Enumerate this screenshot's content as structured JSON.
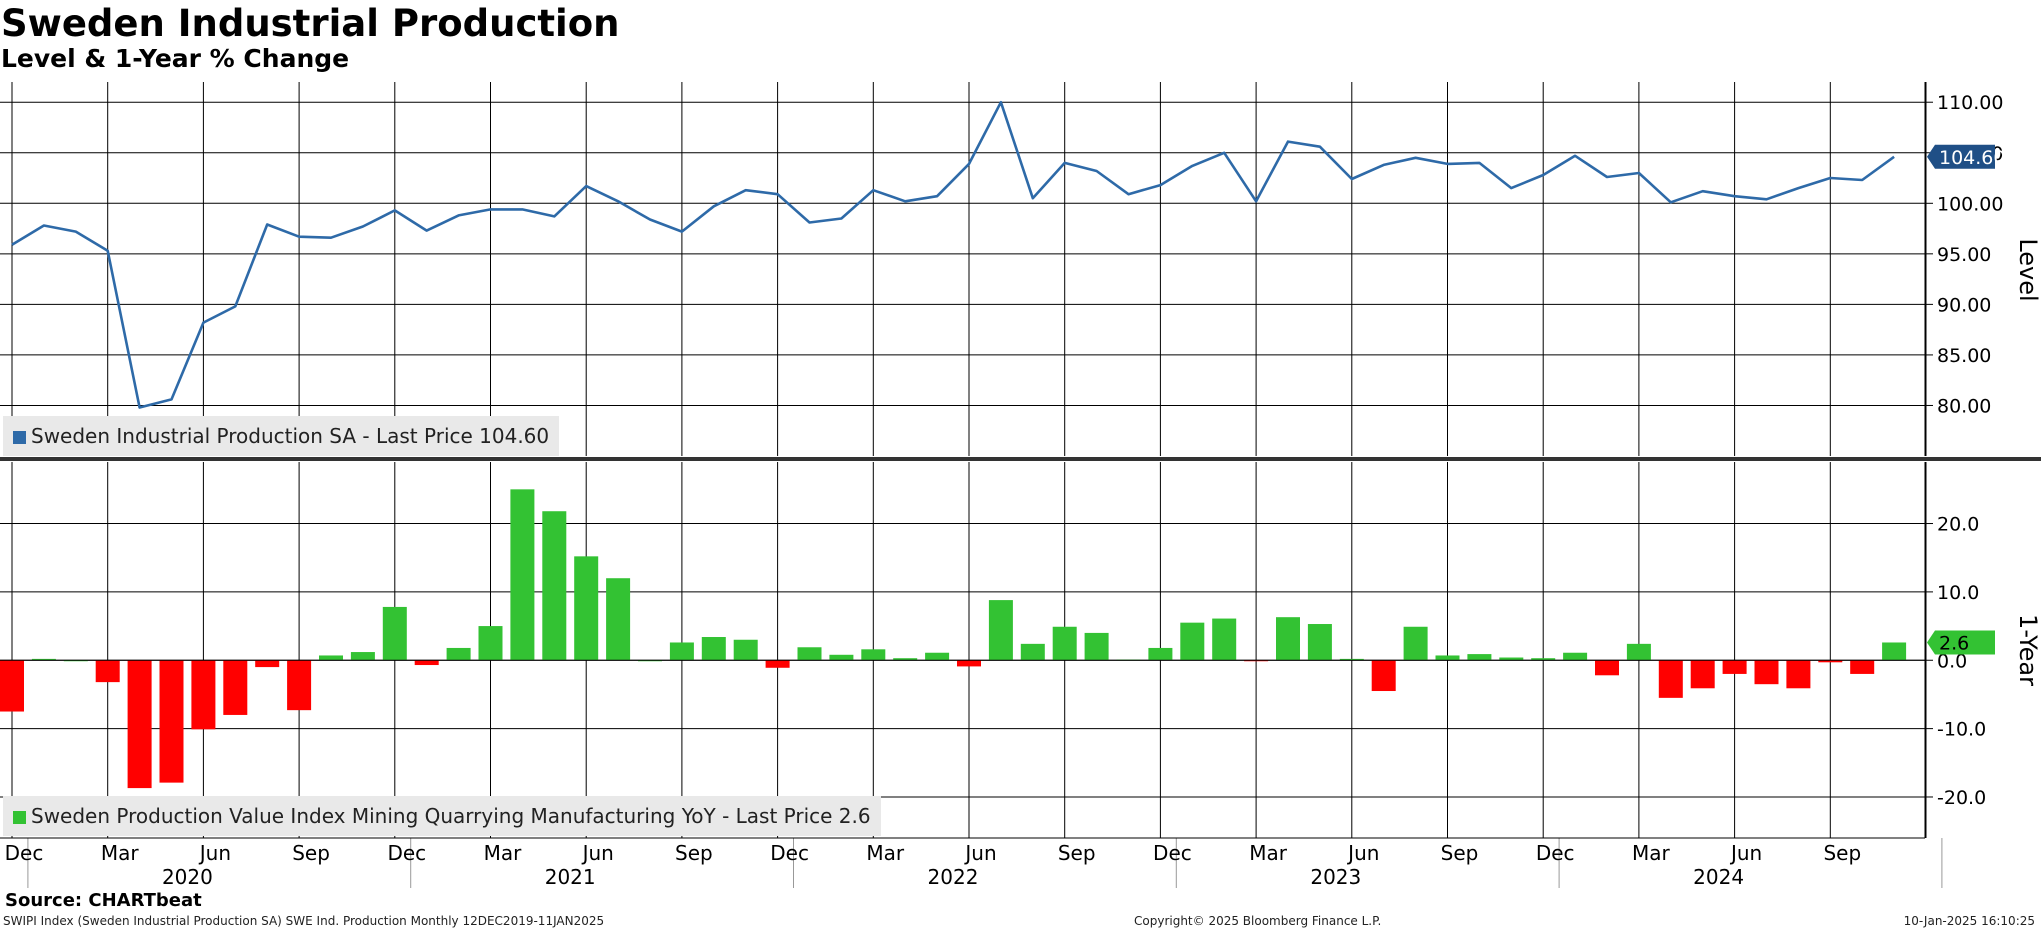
{
  "header": {
    "title": "Sweden Industrial Production",
    "subtitle": "Level & 1-Year % Change"
  },
  "footer": {
    "source": "Source: CHARTbeat",
    "left": "SWIPI Index (Sweden Industrial Production SA) SWE Ind. Production  Monthly 12DEC2019-11JAN2025",
    "mid": "Copyright© 2025 Bloomberg Finance L.P.",
    "right": "10-Jan-2025 16:10:25"
  },
  "colors": {
    "line": "#2e6aa8",
    "bar_positive": "#33c233",
    "bar_negative": "#ff0000",
    "grid": "#000000"
  },
  "chart_data": [
    {
      "type": "line",
      "panel": "top",
      "ylabel": "Level",
      "ylim": [
        75,
        112
      ],
      "yticks": [
        "80.00",
        "85.00",
        "90.00",
        "95.00",
        "100.00",
        "105.00",
        "110.00"
      ],
      "last_value_label": "104.60",
      "legend": "Sweden Industrial Production SA - Last Price 104.60",
      "legend_position": "bottom-left",
      "x": [
        "2019-12",
        "2020-01",
        "2020-02",
        "2020-03",
        "2020-04",
        "2020-05",
        "2020-06",
        "2020-07",
        "2020-08",
        "2020-09",
        "2020-10",
        "2020-11",
        "2020-12",
        "2021-01",
        "2021-02",
        "2021-03",
        "2021-04",
        "2021-05",
        "2021-06",
        "2021-07",
        "2021-08",
        "2021-09",
        "2021-10",
        "2021-11",
        "2021-12",
        "2022-01",
        "2022-02",
        "2022-03",
        "2022-04",
        "2022-05",
        "2022-06",
        "2022-07",
        "2022-08",
        "2022-09",
        "2022-10",
        "2022-11",
        "2022-12",
        "2023-01",
        "2023-02",
        "2023-03",
        "2023-04",
        "2023-05",
        "2023-06",
        "2023-07",
        "2023-08",
        "2023-09",
        "2023-10",
        "2023-11",
        "2023-12",
        "2024-01",
        "2024-02",
        "2024-03",
        "2024-04",
        "2024-05",
        "2024-06",
        "2024-07",
        "2024-08",
        "2024-09",
        "2024-10",
        "2024-11"
      ],
      "series": [
        {
          "values": [
            95.9,
            97.8,
            97.2,
            95.3,
            79.8,
            80.6,
            88.2,
            89.8,
            97.9,
            96.7,
            96.6,
            97.7,
            99.3,
            97.3,
            98.8,
            99.4,
            99.4,
            98.7,
            101.7,
            100.2,
            98.4,
            97.2,
            99.7,
            101.3,
            100.9,
            98.1,
            98.5,
            101.3,
            100.2,
            100.7,
            103.9,
            110.0,
            100.5,
            104.0,
            103.2,
            100.9,
            101.8,
            103.7,
            105.0,
            100.2,
            106.1,
            105.6,
            102.4,
            103.8,
            104.5,
            103.9,
            104.0,
            101.5,
            102.8,
            104.7,
            102.6,
            103.0,
            100.1,
            101.2,
            100.7,
            100.4,
            101.5,
            102.5,
            102.3,
            104.6
          ]
        }
      ]
    },
    {
      "type": "bar",
      "panel": "bottom",
      "ylabel": "1-Year",
      "ylim": [
        -26,
        29
      ],
      "yticks": [
        "-20.0",
        "-10.0",
        "0.0",
        "10.0",
        "20.0"
      ],
      "last_value_label": "2.6",
      "legend": "Sweden Production Value Index Mining Quarrying Manufacturing YoY - Last Price 2.6",
      "legend_position": "bottom-left",
      "x_month_labels": [
        "Dec",
        "Mar",
        "Jun",
        "Sep",
        "Dec",
        "Mar",
        "Jun",
        "Sep",
        "Dec",
        "Mar",
        "Jun",
        "Sep",
        "Dec",
        "Mar",
        "Jun",
        "Sep",
        "Dec",
        "Mar",
        "Jun",
        "Sep"
      ],
      "x_year_labels": [
        "2020",
        "2021",
        "2022",
        "2023",
        "2024"
      ],
      "series": [
        {
          "values": [
            -7.5,
            0.2,
            0.0,
            -3.2,
            -18.7,
            -17.9,
            -10.1,
            -8.0,
            -1.0,
            -7.3,
            0.7,
            1.2,
            7.8,
            -0.7,
            1.8,
            5.0,
            25.0,
            21.8,
            15.2,
            12.0,
            0.0,
            2.6,
            3.4,
            3.0,
            -1.1,
            1.9,
            0.8,
            1.6,
            0.3,
            1.1,
            -0.9,
            8.8,
            2.4,
            4.9,
            4.0,
            0.1,
            1.8,
            5.5,
            6.1,
            -0.1,
            6.3,
            5.3,
            0.2,
            -4.5,
            4.9,
            0.7,
            0.9,
            0.4,
            0.3,
            1.1,
            -2.2,
            2.4,
            -5.5,
            -4.1,
            -2.0,
            -3.5,
            -4.1,
            -0.3,
            -2.0,
            2.6
          ]
        }
      ]
    }
  ]
}
